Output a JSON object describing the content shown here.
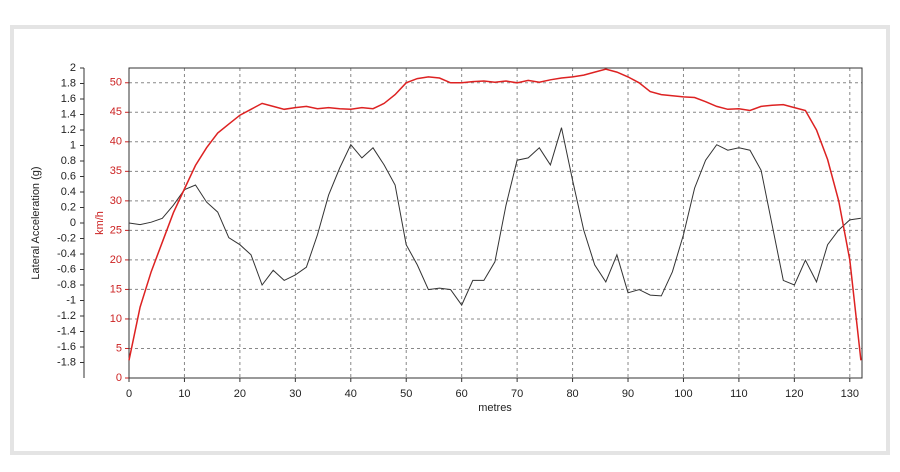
{
  "chart_data": {
    "type": "line",
    "ylabel": "Lateral Acceleration (g)",
    "y2label": "km/h",
    "xlabel": "metres",
    "grid": true,
    "xlim": [
      0,
      132.2
    ],
    "xticks": [
      0,
      10,
      20,
      30,
      40,
      50,
      60,
      70,
      80,
      90,
      100,
      110,
      120,
      130
    ],
    "ylim": [
      -2,
      2
    ],
    "yticks": [
      -1.8,
      -1.6,
      -1.4,
      -1.2,
      -1,
      -0.8,
      -0.6,
      -0.4,
      -0.2,
      0,
      0.2,
      0.4,
      0.6,
      0.8,
      1,
      1.2,
      1.4,
      1.6,
      1.8,
      2
    ],
    "y2lim": [
      0,
      52.5
    ],
    "y2ticks": [
      0,
      5,
      10,
      15,
      20,
      25,
      30,
      35,
      40,
      45,
      50
    ],
    "y2color": "#cc2222",
    "x": [
      0,
      2,
      4,
      6,
      8,
      10,
      12,
      14,
      16,
      18,
      20,
      22,
      24,
      26,
      28,
      30,
      32,
      34,
      36,
      38,
      40,
      42,
      44,
      46,
      48,
      50,
      52,
      54,
      56,
      58,
      60,
      62,
      64,
      66,
      68,
      70,
      72,
      74,
      76,
      78,
      80,
      82,
      84,
      86,
      88,
      90,
      92,
      94,
      96,
      98,
      100,
      102,
      104,
      106,
      108,
      110,
      112,
      114,
      116,
      118,
      120,
      122,
      124,
      126,
      128,
      130,
      132
    ],
    "series": [
      {
        "color": "#333333",
        "axis": "y",
        "values": [
          0,
          -0.02,
          0.01,
          0.06,
          0.23,
          0.43,
          0.49,
          0.27,
          0.14,
          -0.19,
          -0.28,
          -0.41,
          -0.8,
          -0.61,
          -0.74,
          -0.67,
          -0.57,
          -0.15,
          0.36,
          0.71,
          1.01,
          0.84,
          0.97,
          0.75,
          0.49,
          -0.28,
          -0.54,
          -0.86,
          -0.84,
          -0.86,
          -1.06,
          -0.74,
          -0.74,
          -0.5,
          0.23,
          0.81,
          0.84,
          0.97,
          0.75,
          1.23,
          0.55,
          -0.09,
          -0.54,
          -0.76,
          -0.41,
          -0.9,
          -0.86,
          -0.93,
          -0.94,
          -0.63,
          -0.15,
          0.45,
          0.81,
          1.01,
          0.94,
          0.97,
          0.94,
          0.68,
          -0.03,
          -0.74,
          -0.8,
          -0.48,
          -0.76,
          -0.28,
          -0.09,
          0.04,
          0.06
        ]
      },
      {
        "color": "#dd2222",
        "axis": "y2",
        "values": [
          3,
          12,
          18,
          23,
          28,
          32,
          36,
          39,
          41.5,
          43,
          44.5,
          45.5,
          46.5,
          46,
          45.5,
          45.8,
          46,
          45.6,
          45.8,
          45.6,
          45.5,
          45.8,
          45.6,
          46.5,
          48,
          50,
          50.7,
          51,
          50.8,
          50,
          50,
          50.2,
          50.3,
          50.1,
          50.3,
          50,
          50.4,
          50.1,
          50.5,
          50.8,
          51,
          51.3,
          51.8,
          52.3,
          51.8,
          51,
          50,
          48.5,
          48,
          47.8,
          47.6,
          47.5,
          46.8,
          46,
          45.5,
          45.6,
          45.3,
          46,
          46.2,
          46.3,
          45.8,
          45.3,
          42,
          37,
          30,
          20,
          3
        ]
      }
    ]
  }
}
